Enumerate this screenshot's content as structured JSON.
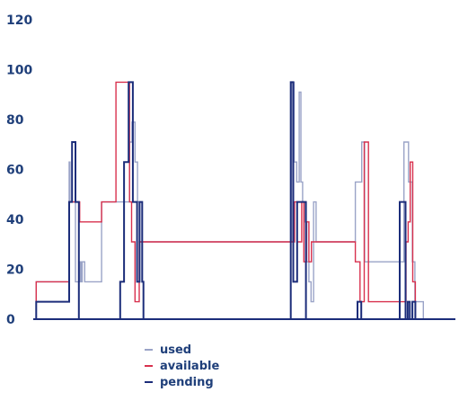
{
  "chart_data": {
    "type": "line",
    "step": true,
    "xlim": [
      0,
      100
    ],
    "ylim": [
      0,
      120
    ],
    "yticks": [
      "0",
      "20",
      "40",
      "60",
      "80",
      "100",
      "120"
    ],
    "grid": false,
    "legend_position": "bottom-center",
    "series": [
      {
        "name": "used",
        "color": "#9aa3c7",
        "x": [
          0,
          0.7,
          0.7,
          8.5,
          8.5,
          8.7,
          8.7,
          10,
          10,
          11,
          11,
          11.3,
          11.3,
          11.6,
          11.6,
          11.8,
          11.8,
          12.2,
          12.2,
          16.2,
          16.2,
          22.8,
          22.8,
          23.4,
          23.4,
          24.1,
          24.1,
          24.7,
          24.7,
          25.1,
          25.1,
          25.5,
          25.5,
          26,
          26,
          26.5,
          26.5,
          26.8,
          26.8,
          27.2,
          27.2,
          27.6,
          27.6,
          61.2,
          61.2,
          61.8,
          61.8,
          62.4,
          62.4,
          63,
          63,
          63.4,
          63.4,
          63.8,
          63.8,
          64.3,
          64.3,
          64.8,
          64.8,
          65.3,
          65.3,
          65.8,
          65.8,
          66.4,
          66.4,
          67,
          67,
          67.6,
          67.6,
          76.3,
          76.3,
          77.8,
          77.8,
          78.5,
          78.5,
          79.1,
          79.1,
          79.6,
          79.6,
          80.2,
          80.2,
          87.8,
          87.8,
          88.9,
          88.9,
          89.8,
          89.8,
          90.4,
          90.4,
          91,
          91,
          91.6,
          91.6,
          92.4,
          92.4,
          100
        ],
        "y": [
          0,
          0,
          15,
          15,
          63,
          63,
          47,
          47,
          15,
          15,
          23,
          23,
          15,
          15,
          23,
          23,
          23,
          23,
          15,
          15,
          47,
          47,
          71,
          71,
          79,
          79,
          63,
          63,
          47,
          47,
          31,
          31,
          31,
          31,
          31,
          31,
          31,
          31,
          31,
          31,
          31,
          31,
          31,
          31,
          95,
          95,
          63,
          63,
          55,
          55,
          91,
          91,
          55,
          55,
          47,
          47,
          39,
          39,
          23,
          23,
          15,
          15,
          7,
          7,
          47,
          47,
          31,
          31,
          31,
          31,
          55,
          55,
          71,
          71,
          23,
          23,
          23,
          23,
          23,
          23,
          23,
          23,
          71,
          71,
          55,
          55,
          23,
          23,
          7,
          7,
          7,
          7,
          7,
          7,
          0,
          0
        ]
      },
      {
        "name": "available",
        "color": "#d8314e",
        "x": [
          0,
          0.7,
          0.7,
          8.5,
          8.5,
          11,
          11,
          12.2,
          12.2,
          16.2,
          16.2,
          16.6,
          16.6,
          17.2,
          17.2,
          17.8,
          17.8,
          19.6,
          19.6,
          22.8,
          22.8,
          23.3,
          23.3,
          23.6,
          23.6,
          24.1,
          24.1,
          25.1,
          25.1,
          25.4,
          25.4,
          25.9,
          25.9,
          26.4,
          26.4,
          26.8,
          26.8,
          61.2,
          61.2,
          61.9,
          61.9,
          62.5,
          62.5,
          63.1,
          63.1,
          63.6,
          63.6,
          64.1,
          64.1,
          64.7,
          64.7,
          65.3,
          65.3,
          65.9,
          65.9,
          66.6,
          66.6,
          67.4,
          67.4,
          76.3,
          76.3,
          77.4,
          77.4,
          78.4,
          78.4,
          79.4,
          79.4,
          80.2,
          80.2,
          87.6,
          87.6,
          88.3,
          88.3,
          88.8,
          88.8,
          89.3,
          89.3,
          89.9,
          89.9,
          90.5,
          90.5,
          100
        ],
        "y": [
          0,
          0,
          15,
          15,
          47,
          47,
          39,
          39,
          39,
          39,
          47,
          47,
          47,
          47,
          47,
          47,
          47,
          47,
          95,
          95,
          47,
          47,
          31,
          31,
          31,
          31,
          7,
          7,
          31,
          31,
          31,
          31,
          31,
          31,
          31,
          31,
          31,
          31,
          31,
          31,
          47,
          47,
          31,
          31,
          31,
          31,
          47,
          47,
          23,
          23,
          39,
          39,
          23,
          23,
          31,
          31,
          31,
          31,
          31,
          31,
          23,
          23,
          7,
          7,
          71,
          71,
          7,
          7,
          7,
          7,
          7,
          7,
          31,
          31,
          39,
          39,
          63,
          63,
          15,
          15,
          0,
          0
        ]
      },
      {
        "name": "pending",
        "color": "#1c2d7a",
        "x": [
          0,
          0.7,
          0.7,
          8.5,
          8.5,
          9.2,
          9.2,
          10,
          10,
          10.8,
          10.8,
          11.5,
          11.5,
          20.6,
          20.6,
          21.5,
          21.5,
          22.6,
          22.6,
          23.6,
          23.6,
          24.6,
          24.6,
          25.2,
          25.2,
          25.8,
          25.8,
          26.1,
          26.1,
          61,
          61,
          61.6,
          61.6,
          62.5,
          62.5,
          63.3,
          63.3,
          64.1,
          64.1,
          64.6,
          64.6,
          76.8,
          76.8,
          77.7,
          77.7,
          86.8,
          86.8,
          88.2,
          88.2,
          88.7,
          88.7,
          89.2,
          89.2,
          89.8,
          89.8,
          90.5,
          90.5,
          100
        ],
        "y": [
          0,
          0,
          7,
          7,
          47,
          47,
          71,
          71,
          47,
          47,
          0,
          0,
          0,
          0,
          15,
          15,
          63,
          63,
          95,
          95,
          47,
          47,
          15,
          15,
          47,
          47,
          15,
          15,
          0,
          0,
          95,
          95,
          15,
          15,
          47,
          47,
          47,
          47,
          47,
          47,
          0,
          0,
          7,
          7,
          0,
          0,
          47,
          47,
          0,
          0,
          7,
          7,
          0,
          0,
          7,
          7,
          0,
          0
        ]
      }
    ]
  }
}
